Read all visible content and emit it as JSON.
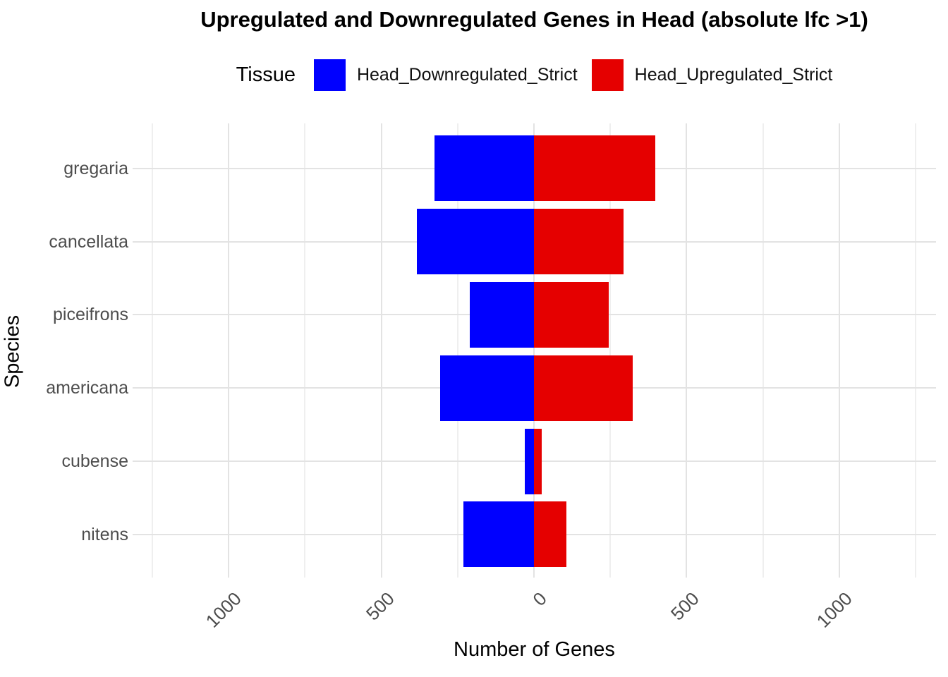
{
  "title": "Upregulated and Downregulated Genes in Head (absolute lfc >1)",
  "legend": {
    "title": "Tissue",
    "items": [
      {
        "label": "Head_Downregulated_Strict",
        "color": "#0000ff"
      },
      {
        "label": "Head_Upregulated_Strict",
        "color": "#e50000"
      }
    ]
  },
  "axes": {
    "x_title": "Number of Genes",
    "y_title": "Species",
    "x_tick_values": [
      -1000,
      -500,
      0,
      500,
      1000
    ],
    "x_tick_labels": [
      "1000",
      "500",
      "0",
      "500",
      "1000"
    ],
    "x_minor_tick_values": [
      -1250,
      -750,
      -250,
      250,
      750,
      1250
    ]
  },
  "chart_data": {
    "type": "bar",
    "orientation": "horizontal-diverging",
    "title": "Upregulated and Downregulated Genes in Head (absolute lfc >1)",
    "xlabel": "Number of Genes",
    "ylabel": "Species",
    "xlim": [
      -1315,
      1315
    ],
    "grid": true,
    "legend_position": "top",
    "legend_title": "Tissue",
    "categories": [
      "gregaria",
      "cancellata",
      "piceifrons",
      "americana",
      "cubense",
      "nitens"
    ],
    "series": [
      {
        "name": "Head_Downregulated_Strict",
        "direction": "negative",
        "color": "#0000ff",
        "values": [
          325,
          384,
          210,
          308,
          30,
          231
        ]
      },
      {
        "name": "Head_Upregulated_Strict",
        "direction": "positive",
        "color": "#e50000",
        "values": [
          397,
          293,
          244,
          324,
          25,
          106
        ]
      }
    ]
  }
}
